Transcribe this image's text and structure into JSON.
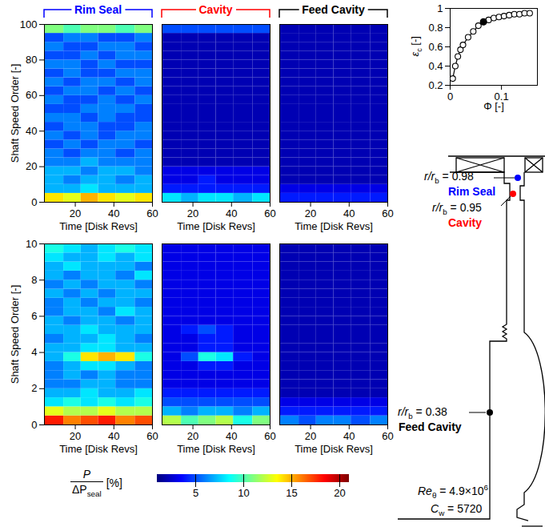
{
  "chart_data": [
    {
      "type": "heatmap",
      "title": "Rim Seal",
      "color": "#0000ff",
      "x_label": "Time [Disk Revs]",
      "y_label": "Shaft Speed Order [-]",
      "xlim": [
        4,
        60
      ],
      "xticks": [
        20,
        40,
        60
      ],
      "ylim": [
        0,
        100
      ],
      "yticks": [
        0,
        20,
        40,
        60,
        80,
        100
      ],
      "x_bins": [
        4,
        14,
        23,
        32,
        41,
        51,
        60
      ],
      "y_bins": [
        0,
        5,
        10,
        15,
        20,
        25,
        30,
        35,
        40,
        45,
        50,
        55,
        60,
        65,
        70,
        75,
        80,
        85,
        90,
        95,
        100
      ],
      "z": [
        [
          14,
          13,
          15,
          14,
          13,
          14
        ],
        [
          7,
          7,
          8,
          7,
          7,
          7
        ],
        [
          7,
          6,
          7,
          7,
          6,
          7
        ],
        [
          7,
          7,
          6,
          7,
          7,
          6
        ],
        [
          6,
          6,
          7,
          6,
          6,
          6
        ],
        [
          6,
          5,
          6,
          6,
          5,
          6
        ],
        [
          5,
          6,
          5,
          6,
          6,
          5
        ],
        [
          6,
          5,
          6,
          5,
          6,
          6
        ],
        [
          5,
          6,
          6,
          5,
          5,
          6
        ],
        [
          6,
          6,
          5,
          6,
          5,
          5
        ],
        [
          5,
          5,
          6,
          6,
          6,
          5
        ],
        [
          6,
          5,
          5,
          6,
          5,
          6
        ],
        [
          5,
          6,
          6,
          5,
          6,
          5
        ],
        [
          6,
          5,
          6,
          6,
          5,
          6
        ],
        [
          5,
          6,
          5,
          5,
          6,
          6
        ],
        [
          6,
          6,
          5,
          6,
          5,
          5
        ],
        [
          5,
          5,
          6,
          5,
          6,
          6
        ],
        [
          6,
          5,
          5,
          6,
          6,
          5
        ],
        [
          5,
          6,
          6,
          5,
          5,
          6
        ],
        [
          11,
          10,
          11,
          11,
          10,
          11
        ]
      ]
    },
    {
      "type": "heatmap",
      "title": "Cavity",
      "color": "#ff0000",
      "x_label": "Time [Disk Revs]",
      "tick_labels": "x",
      "xlim": [
        4,
        60
      ],
      "xticks": [
        20,
        40,
        60
      ],
      "ylim": [
        0,
        100
      ],
      "x_bins": [
        4,
        14,
        23,
        32,
        41,
        51,
        60
      ],
      "y_bins": [
        0,
        5,
        10,
        15,
        20,
        25,
        30,
        35,
        40,
        45,
        50,
        55,
        60,
        65,
        70,
        75,
        80,
        85,
        90,
        95,
        100
      ],
      "z": [
        [
          8,
          7,
          8,
          8,
          7,
          8
        ],
        [
          4,
          4,
          4,
          4,
          4,
          4
        ],
        [
          3,
          3,
          4,
          3,
          3,
          3
        ],
        [
          3,
          3,
          3,
          3,
          3,
          3
        ],
        [
          2,
          2,
          2,
          2,
          2,
          2
        ],
        [
          2,
          2,
          2,
          2,
          2,
          2
        ],
        [
          2,
          2,
          2,
          2,
          2,
          2
        ],
        [
          2,
          2,
          2,
          2,
          2,
          2
        ],
        [
          2,
          2,
          2,
          2,
          2,
          2
        ],
        [
          2,
          2,
          2,
          2,
          2,
          2
        ],
        [
          2,
          2,
          2,
          2,
          2,
          2
        ],
        [
          2,
          2,
          2,
          2,
          2,
          2
        ],
        [
          2,
          2,
          2,
          2,
          2,
          2
        ],
        [
          2,
          2,
          2,
          2,
          2,
          2
        ],
        [
          2,
          2,
          2,
          2,
          2,
          2
        ],
        [
          2,
          2,
          2,
          2,
          2,
          2
        ],
        [
          2,
          2,
          2,
          2,
          2,
          2
        ],
        [
          2,
          2,
          2,
          2,
          2,
          2
        ],
        [
          2,
          2,
          2,
          2,
          2,
          2
        ],
        [
          5,
          5,
          5,
          5,
          5,
          5
        ]
      ]
    },
    {
      "type": "heatmap",
      "title": "Feed Cavity",
      "color": "#000000",
      "x_label": "Time [Disk Revs]",
      "tick_labels": "x",
      "xlim": [
        4,
        60
      ],
      "xticks": [
        20,
        40,
        60
      ],
      "ylim": [
        0,
        100
      ],
      "x_bins": [
        4,
        14,
        23,
        32,
        41,
        51,
        60
      ],
      "y_bins": [
        0,
        5,
        10,
        15,
        20,
        25,
        30,
        35,
        40,
        45,
        50,
        55,
        60,
        65,
        70,
        75,
        80,
        85,
        90,
        95,
        100
      ],
      "z": [
        [
          4,
          4,
          4,
          4,
          4,
          4
        ],
        [
          3,
          3,
          3,
          3,
          3,
          3
        ],
        [
          2,
          2,
          2,
          2,
          2,
          2
        ],
        [
          2,
          2,
          2,
          2,
          2,
          2
        ],
        [
          2,
          2,
          2,
          2,
          2,
          2
        ],
        [
          2,
          2,
          2,
          2,
          2,
          2
        ],
        [
          2,
          2,
          2,
          2,
          2,
          2
        ],
        [
          2,
          2,
          2,
          2,
          2,
          2
        ],
        [
          2,
          2,
          2,
          2,
          2,
          2
        ],
        [
          2,
          2,
          2,
          2,
          2,
          2
        ],
        [
          2,
          2,
          2,
          2,
          2,
          2
        ],
        [
          2,
          2,
          2,
          2,
          2,
          2
        ],
        [
          2,
          2,
          2,
          2,
          2,
          2
        ],
        [
          2,
          2,
          2,
          2,
          2,
          2
        ],
        [
          2,
          2,
          2,
          2,
          2,
          2
        ],
        [
          2,
          2,
          2,
          2,
          2,
          2
        ],
        [
          2,
          2,
          2,
          2,
          2,
          2
        ],
        [
          2,
          2,
          2,
          2,
          2,
          2
        ],
        [
          2,
          2,
          2,
          2,
          2,
          2
        ],
        [
          2,
          2,
          2,
          2,
          2,
          2
        ]
      ]
    },
    {
      "type": "heatmap",
      "x_label": "Time [Disk Revs]",
      "y_label": "Shaft Speed Order [-]",
      "xlim": [
        4,
        60
      ],
      "xticks": [
        20,
        40,
        60
      ],
      "ylim": [
        0,
        10
      ],
      "yticks": [
        0,
        2,
        4,
        6,
        8,
        10
      ],
      "x_bins": [
        4,
        14,
        23,
        32,
        41,
        51,
        60
      ],
      "y_bins": [
        0,
        0.5,
        1,
        1.5,
        2,
        2.5,
        3,
        3.5,
        4,
        4.5,
        5,
        5.5,
        6,
        6.5,
        7,
        7.5,
        8,
        8.5,
        9,
        9.5,
        10
      ],
      "z": [
        [
          18,
          16,
          17,
          18,
          16,
          17
        ],
        [
          13,
          12,
          12,
          13,
          12,
          12
        ],
        [
          8,
          9,
          8,
          9,
          8,
          9
        ],
        [
          7,
          7,
          8,
          7,
          7,
          8
        ],
        [
          6,
          6,
          7,
          7,
          6,
          6
        ],
        [
          6,
          7,
          6,
          7,
          6,
          6
        ],
        [
          6,
          7,
          8,
          8,
          7,
          6
        ],
        [
          7,
          9,
          14,
          15,
          14,
          9
        ],
        [
          7,
          7,
          8,
          8,
          7,
          7
        ],
        [
          6,
          7,
          7,
          8,
          7,
          6
        ],
        [
          7,
          7,
          8,
          7,
          7,
          7
        ],
        [
          7,
          6,
          7,
          7,
          6,
          7
        ],
        [
          6,
          7,
          7,
          6,
          8,
          7
        ],
        [
          6,
          7,
          6,
          7,
          7,
          6
        ],
        [
          7,
          6,
          7,
          6,
          7,
          7
        ],
        [
          6,
          7,
          6,
          7,
          7,
          6
        ],
        [
          7,
          6,
          7,
          7,
          6,
          8
        ],
        [
          7,
          8,
          7,
          7,
          7,
          6
        ],
        [
          8,
          7,
          7,
          8,
          7,
          8
        ],
        [
          9,
          8,
          7,
          8,
          9,
          8
        ]
      ]
    },
    {
      "type": "heatmap",
      "x_label": "Time [Disk Revs]",
      "tick_labels": "x",
      "xlim": [
        4,
        60
      ],
      "xticks": [
        20,
        40,
        60
      ],
      "ylim": [
        0,
        10
      ],
      "x_bins": [
        4,
        14,
        23,
        32,
        41,
        51,
        60
      ],
      "y_bins": [
        0,
        0.5,
        1,
        1.5,
        2,
        2.5,
        3,
        3.5,
        4,
        4.5,
        5,
        5.5,
        6,
        6.5,
        7,
        7.5,
        8,
        8.5,
        9,
        9.5,
        10
      ],
      "z": [
        [
          12,
          10,
          11,
          12,
          9,
          11
        ],
        [
          7,
          6,
          7,
          7,
          6,
          7
        ],
        [
          5,
          5,
          5,
          5,
          5,
          5
        ],
        [
          4,
          4,
          4,
          4,
          4,
          4
        ],
        [
          3,
          3,
          3,
          3,
          3,
          3
        ],
        [
          3,
          3,
          3,
          3,
          3,
          3
        ],
        [
          3,
          3,
          4,
          4,
          3,
          3
        ],
        [
          3,
          5,
          9,
          8,
          4,
          3
        ],
        [
          3,
          3,
          4,
          4,
          3,
          3
        ],
        [
          3,
          3,
          4,
          4,
          3,
          3
        ],
        [
          3,
          4,
          5,
          4,
          3,
          3
        ],
        [
          3,
          3,
          3,
          3,
          3,
          3
        ],
        [
          3,
          3,
          3,
          3,
          3,
          3
        ],
        [
          3,
          3,
          3,
          3,
          3,
          3
        ],
        [
          3,
          3,
          3,
          3,
          3,
          3
        ],
        [
          3,
          3,
          3,
          3,
          3,
          3
        ],
        [
          3,
          3,
          3,
          3,
          3,
          3
        ],
        [
          3,
          3,
          3,
          3,
          3,
          3
        ],
        [
          3,
          3,
          3,
          3,
          3,
          3
        ],
        [
          3,
          3,
          3,
          3,
          3,
          3
        ]
      ]
    },
    {
      "type": "heatmap",
      "x_label": "Time [Disk Revs]",
      "tick_labels": "x",
      "xlim": [
        4,
        60
      ],
      "xticks": [
        20,
        40,
        60
      ],
      "ylim": [
        0,
        10
      ],
      "x_bins": [
        4,
        14,
        23,
        32,
        41,
        51,
        60
      ],
      "y_bins": [
        0,
        0.5,
        1,
        1.5,
        2,
        2.5,
        3,
        3.5,
        4,
        4.5,
        5,
        5.5,
        6,
        6.5,
        7,
        7.5,
        8,
        8.5,
        9,
        9.5,
        10
      ],
      "z": [
        [
          6,
          5,
          6,
          6,
          5,
          6
        ],
        [
          4,
          4,
          4,
          4,
          4,
          4
        ],
        [
          3,
          3,
          3,
          3,
          3,
          3
        ],
        [
          2,
          2,
          2,
          2,
          2,
          2
        ],
        [
          2,
          2,
          2,
          2,
          2,
          2
        ],
        [
          2,
          2,
          2,
          2,
          2,
          2
        ],
        [
          2,
          2,
          2,
          2,
          2,
          2
        ],
        [
          2,
          2,
          2,
          2,
          2,
          2
        ],
        [
          2,
          2,
          2,
          2,
          2,
          2
        ],
        [
          2,
          2,
          2,
          2,
          2,
          2
        ],
        [
          2,
          2,
          2,
          2,
          2,
          2
        ],
        [
          2,
          2,
          2,
          2,
          2,
          2
        ],
        [
          2,
          2,
          2,
          2,
          2,
          2
        ],
        [
          2,
          2,
          2,
          2,
          2,
          2
        ],
        [
          2,
          2,
          2,
          2,
          2,
          2
        ],
        [
          2,
          2,
          2,
          2,
          2,
          2
        ],
        [
          2,
          2,
          2,
          2,
          2,
          2
        ],
        [
          2,
          2,
          2,
          2,
          2,
          2
        ],
        [
          2,
          2,
          2,
          2,
          2,
          2
        ],
        [
          2,
          2,
          2,
          2,
          2,
          2
        ]
      ]
    },
    {
      "type": "scatter",
      "x_label": "Φ [-]",
      "y_label": {
        "text": "ε",
        "sub": "c",
        "rest": " [-]"
      },
      "xlim": [
        0,
        0.17
      ],
      "xticks": [
        0,
        0.1
      ],
      "ylim": [
        0.2,
        1
      ],
      "yticks": [
        0.2,
        0.4,
        0.6,
        0.8,
        1
      ],
      "x": [
        0.005,
        0.01,
        0.015,
        0.02,
        0.025,
        0.035,
        0.045,
        0.055,
        0.065,
        0.075,
        0.085,
        0.095,
        0.105,
        0.115,
        0.125,
        0.135,
        0.145,
        0.155
      ],
      "series": [
        {
          "color": "#000000",
          "marker": "circle",
          "line_style": "solid",
          "values": [
            0.27,
            0.4,
            0.5,
            0.57,
            0.62,
            0.7,
            0.76,
            0.82,
            0.86,
            0.88,
            0.9,
            0.91,
            0.92,
            0.93,
            0.94,
            0.94,
            0.95,
            0.95
          ]
        }
      ],
      "highlight": {
        "x": 0.065,
        "y": 0.86,
        "marker": "filled",
        "color": "#000000"
      }
    }
  ],
  "colorbar": {
    "label": {
      "numerator": "P",
      "denominator": "ΔP",
      "denominator_sub": "seal",
      "unit": "[%]"
    },
    "clim": [
      1,
      21
    ],
    "cticks": [
      5,
      10,
      15,
      20
    ]
  },
  "diagram": {
    "probes": [
      {
        "text": "r/r",
        "sub": "b",
        "rest": " = 0.98",
        "name": "Rim Seal",
        "color": "#0000ff"
      },
      {
        "text": "r/r",
        "sub": "b",
        "rest": " = 0.95",
        "name": "Cavity",
        "color": "#ff0000"
      },
      {
        "text": "r/r",
        "sub": "b",
        "rest": " = 0.38",
        "name": "Feed Cavity",
        "color": "#000000"
      }
    ],
    "conditions": [
      {
        "text": "Re",
        "sub": "θ",
        "rest": " = 4.9×10",
        "sup": "6"
      },
      {
        "text": "C",
        "sub": "w",
        "rest": " = 5720"
      }
    ]
  }
}
